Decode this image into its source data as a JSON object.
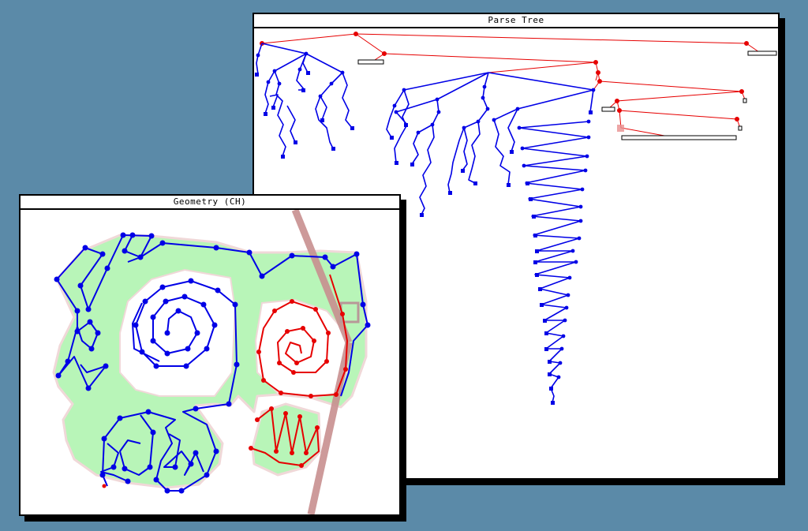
{
  "windows": {
    "parse_tree": {
      "title": "Parse Tree"
    },
    "geometry": {
      "title": "Geometry (CH)"
    }
  },
  "colors": {
    "desktop": "#5b8aa8",
    "blue_path": "#0000e6",
    "red_path": "#e60000",
    "hull_fill": "#b8f5b8",
    "cut_line": "#c89090"
  }
}
